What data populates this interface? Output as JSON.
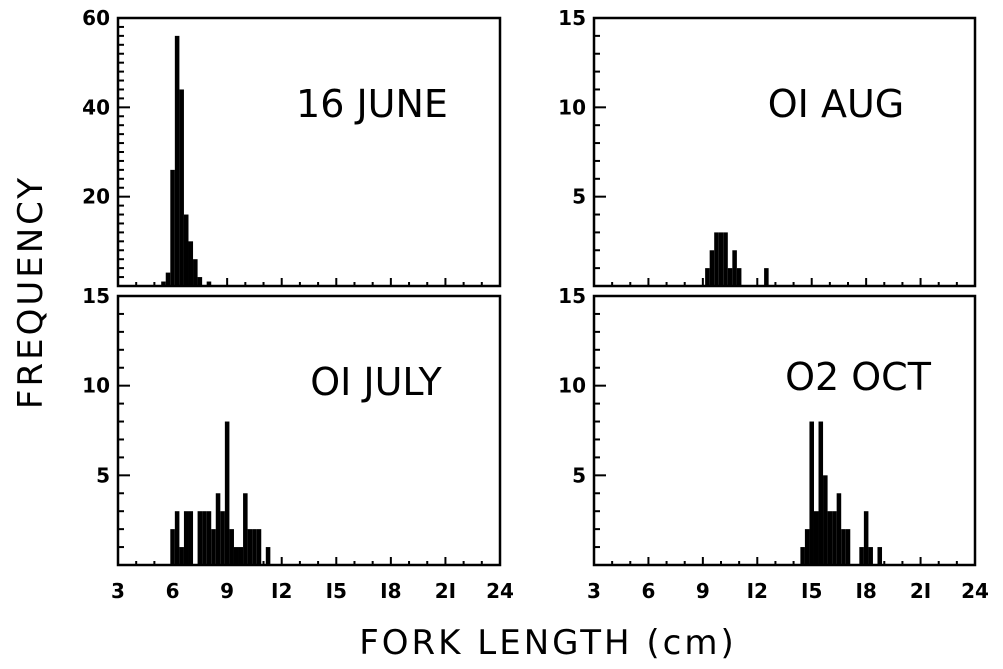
{
  "figure": {
    "ylabel": "FREQUENCY",
    "xlabel": "FORK LENGTH (cm)"
  },
  "chart_data": [
    {
      "type": "bar",
      "panel": "16 JUNE",
      "title": "16 JUNE",
      "xlim": [
        3,
        24
      ],
      "ylim": [
        0,
        60
      ],
      "yticks": [
        20,
        40,
        60
      ],
      "xticks": [
        3,
        6,
        9,
        12,
        15,
        18,
        21,
        24
      ],
      "bin_width": 0.25,
      "bins": [
        {
          "x": 5.5,
          "y": 1
        },
        {
          "x": 5.75,
          "y": 3
        },
        {
          "x": 6.0,
          "y": 26
        },
        {
          "x": 6.25,
          "y": 56
        },
        {
          "x": 6.5,
          "y": 44
        },
        {
          "x": 6.75,
          "y": 16
        },
        {
          "x": 7.0,
          "y": 10
        },
        {
          "x": 7.25,
          "y": 6
        },
        {
          "x": 7.5,
          "y": 2
        },
        {
          "x": 8.0,
          "y": 1
        }
      ]
    },
    {
      "type": "bar",
      "panel": "01 AUG",
      "title": "OI AUG",
      "xlim": [
        3,
        24
      ],
      "ylim": [
        0,
        15
      ],
      "yticks": [
        5,
        10,
        15
      ],
      "xticks": [
        3,
        6,
        9,
        12,
        15,
        18,
        21,
        24
      ],
      "bin_width": 0.25,
      "bins": [
        {
          "x": 9.25,
          "y": 1
        },
        {
          "x": 9.5,
          "y": 2
        },
        {
          "x": 9.75,
          "y": 3
        },
        {
          "x": 10.0,
          "y": 3
        },
        {
          "x": 10.25,
          "y": 3
        },
        {
          "x": 10.5,
          "y": 1
        },
        {
          "x": 10.75,
          "y": 2
        },
        {
          "x": 11.0,
          "y": 1
        },
        {
          "x": 12.5,
          "y": 1
        }
      ]
    },
    {
      "type": "bar",
      "panel": "01 JULY",
      "title": "OI JULY",
      "xlim": [
        3,
        24
      ],
      "ylim": [
        0,
        15
      ],
      "yticks": [
        5,
        10,
        15
      ],
      "xticks": [
        3,
        6,
        9,
        12,
        15,
        18,
        21,
        24
      ],
      "xticklabels": [
        "3",
        "6",
        "9",
        "I2",
        "I5",
        "I8",
        "2I",
        "24"
      ],
      "bin_width": 0.25,
      "bins": [
        {
          "x": 6.0,
          "y": 2
        },
        {
          "x": 6.25,
          "y": 3
        },
        {
          "x": 6.5,
          "y": 1
        },
        {
          "x": 6.75,
          "y": 3
        },
        {
          "x": 7.0,
          "y": 3
        },
        {
          "x": 7.5,
          "y": 3
        },
        {
          "x": 7.75,
          "y": 3
        },
        {
          "x": 8.0,
          "y": 3
        },
        {
          "x": 8.25,
          "y": 2
        },
        {
          "x": 8.5,
          "y": 4
        },
        {
          "x": 8.75,
          "y": 3
        },
        {
          "x": 9.0,
          "y": 8
        },
        {
          "x": 9.25,
          "y": 2
        },
        {
          "x": 9.5,
          "y": 1
        },
        {
          "x": 9.75,
          "y": 1
        },
        {
          "x": 10.0,
          "y": 4
        },
        {
          "x": 10.25,
          "y": 2
        },
        {
          "x": 10.5,
          "y": 2
        },
        {
          "x": 10.75,
          "y": 2
        },
        {
          "x": 11.25,
          "y": 1
        }
      ]
    },
    {
      "type": "bar",
      "panel": "02 OCT",
      "title": "O2 OCT",
      "xlim": [
        3,
        24
      ],
      "ylim": [
        0,
        15
      ],
      "yticks": [
        5,
        10,
        15
      ],
      "xticks": [
        3,
        6,
        9,
        12,
        15,
        18,
        21,
        24
      ],
      "xticklabels": [
        "3",
        "6",
        "9",
        "I2",
        "I5",
        "I8",
        "2I",
        "24"
      ],
      "bin_width": 0.25,
      "bins": [
        {
          "x": 14.5,
          "y": 1
        },
        {
          "x": 14.75,
          "y": 2
        },
        {
          "x": 15.0,
          "y": 8
        },
        {
          "x": 15.25,
          "y": 3
        },
        {
          "x": 15.5,
          "y": 8
        },
        {
          "x": 15.75,
          "y": 5
        },
        {
          "x": 16.0,
          "y": 3
        },
        {
          "x": 16.25,
          "y": 3
        },
        {
          "x": 16.5,
          "y": 4
        },
        {
          "x": 16.75,
          "y": 2
        },
        {
          "x": 17.0,
          "y": 2
        },
        {
          "x": 17.75,
          "y": 1
        },
        {
          "x": 18.0,
          "y": 3
        },
        {
          "x": 18.25,
          "y": 1
        },
        {
          "x": 18.75,
          "y": 1
        }
      ]
    }
  ]
}
